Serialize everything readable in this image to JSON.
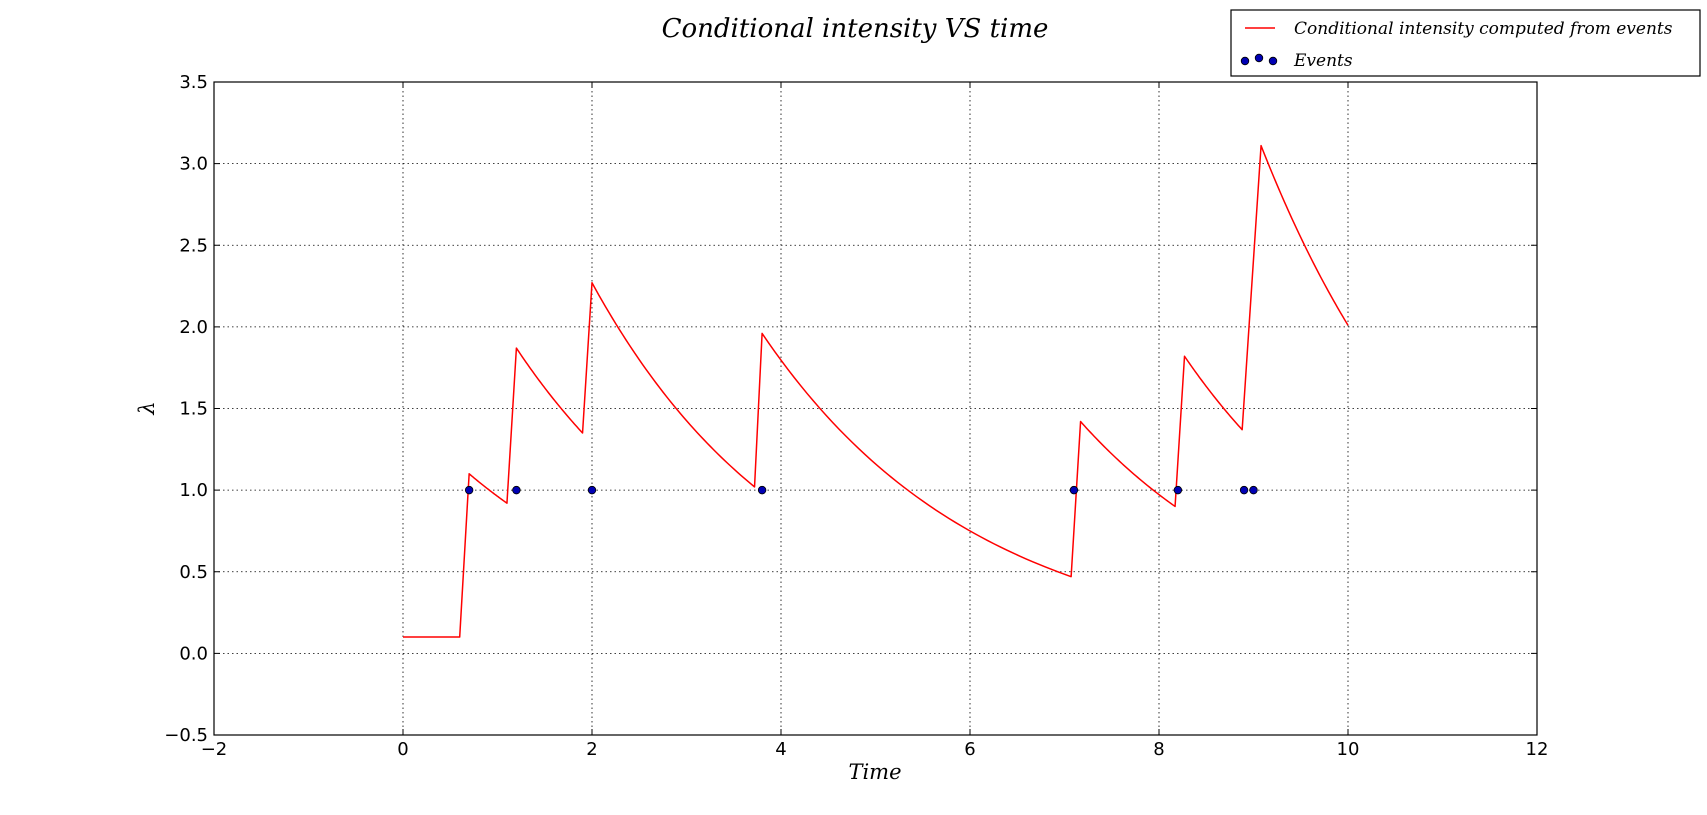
{
  "chart_data": {
    "type": "line",
    "title": "Conditional intensity VS time",
    "xlabel": "Time",
    "ylabel": "λ",
    "xlim": [
      -2,
      12
    ],
    "ylim": [
      -0.5,
      3.5
    ],
    "xticks": [
      -2,
      0,
      2,
      4,
      6,
      8,
      10,
      12
    ],
    "yticks": [
      -0.5,
      0.0,
      0.5,
      1.0,
      1.5,
      2.0,
      2.5,
      3.0,
      3.5
    ],
    "xtick_labels": [
      "−2",
      "0",
      "2",
      "4",
      "6",
      "8",
      "10",
      "12"
    ],
    "ytick_labels": [
      "−0.5",
      "0.0",
      "0.5",
      "1.0",
      "1.5",
      "2.0",
      "2.5",
      "3.0",
      "3.5"
    ],
    "grid": true,
    "legend_position": "top-right",
    "series": [
      {
        "name": "Conditional intensity computed from events",
        "kind": "line",
        "color": "#ff0000",
        "segments": [
          {
            "start": 0.0,
            "end": 0.6,
            "value": 0.1,
            "flat": true
          },
          {
            "event": 0.7,
            "peak": 1.1,
            "end": 1.1,
            "end_value": 0.92
          },
          {
            "event": 1.2,
            "peak": 1.87,
            "end": 1.9,
            "end_value": 1.35
          },
          {
            "event": 2.0,
            "peak": 2.27,
            "end": 3.72,
            "end_value": 1.02
          },
          {
            "event": 3.8,
            "peak": 1.96,
            "end": 7.07,
            "end_value": 0.47
          },
          {
            "event": 7.17,
            "peak": 1.42,
            "end": 8.17,
            "end_value": 0.9
          },
          {
            "event": 8.27,
            "peak": 1.82,
            "end": 8.88,
            "end_value": 1.37
          },
          {
            "event": 9.08,
            "peak": 3.11,
            "end": 10.0,
            "end_value": 2.01
          }
        ]
      },
      {
        "name": "Events",
        "kind": "scatter",
        "color": "#00007f",
        "x": [
          0.7,
          1.2,
          2.0,
          3.8,
          7.1,
          8.2,
          8.9,
          9.0
        ],
        "y": [
          1.0,
          1.0,
          1.0,
          1.0,
          1.0,
          1.0,
          1.0,
          1.0
        ]
      }
    ]
  }
}
